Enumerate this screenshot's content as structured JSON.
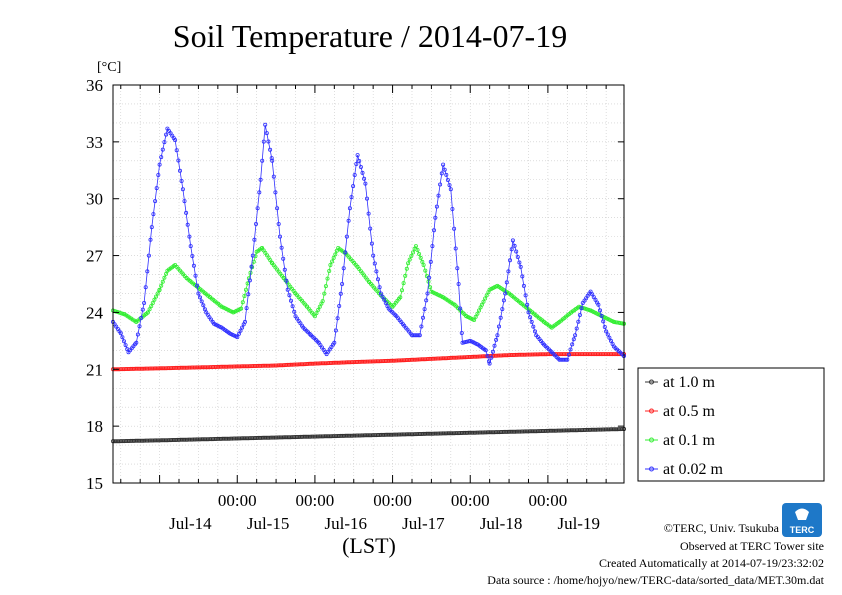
{
  "chart_data": {
    "type": "line",
    "title": "Soil Temperature / 2014-07-19",
    "ylabel": "[°C]",
    "xlabel": "(LST)",
    "ylim": [
      15,
      36
    ],
    "yticks": [
      "15",
      "18",
      "21",
      "24",
      "27",
      "30",
      "33",
      "36"
    ],
    "yticks_values": [
      15,
      18,
      21,
      24,
      27,
      30,
      33,
      36
    ],
    "xlim_days": [
      13.4,
      19.98
    ],
    "x_major_ticks": [
      "00:00",
      "00:00",
      "00:00",
      "00:00",
      "00:00"
    ],
    "x_major_tick_days": [
      15,
      16,
      17,
      18,
      19
    ],
    "x_day_labels": [
      "Jul-14",
      "Jul-15",
      "Jul-16",
      "Jul-17",
      "Jul-18",
      "Jul-19"
    ],
    "x_day_label_days": [
      14.5,
      15.5,
      16.5,
      17.5,
      18.5,
      19.5
    ],
    "grid": true,
    "legend_position": "right",
    "series": [
      {
        "name": "at 1.0 m",
        "color": "#333333",
        "points": [
          [
            13.4,
            17.2
          ],
          [
            14.0,
            17.25
          ],
          [
            14.5,
            17.3
          ],
          [
            15.0,
            17.35
          ],
          [
            15.5,
            17.4
          ],
          [
            16.0,
            17.45
          ],
          [
            16.5,
            17.5
          ],
          [
            17.0,
            17.55
          ],
          [
            17.5,
            17.6
          ],
          [
            18.0,
            17.65
          ],
          [
            18.5,
            17.7
          ],
          [
            19.0,
            17.75
          ],
          [
            19.5,
            17.8
          ],
          [
            19.98,
            17.85
          ]
        ]
      },
      {
        "name": "at 0.5 m",
        "color": "#ff2020",
        "points": [
          [
            13.4,
            21.0
          ],
          [
            14.0,
            21.05
          ],
          [
            14.5,
            21.1
          ],
          [
            15.0,
            21.15
          ],
          [
            15.5,
            21.2
          ],
          [
            16.0,
            21.3
          ],
          [
            16.5,
            21.38
          ],
          [
            17.0,
            21.45
          ],
          [
            17.5,
            21.55
          ],
          [
            18.0,
            21.65
          ],
          [
            18.5,
            21.75
          ],
          [
            19.0,
            21.8
          ],
          [
            19.5,
            21.8
          ],
          [
            19.98,
            21.8
          ]
        ]
      },
      {
        "name": "at 0.1 m",
        "color": "#33ee33",
        "points": [
          [
            13.4,
            24.1
          ],
          [
            13.55,
            23.9
          ],
          [
            13.7,
            23.5
          ],
          [
            13.85,
            24.0
          ],
          [
            14.0,
            25.2
          ],
          [
            14.1,
            26.2
          ],
          [
            14.2,
            26.5
          ],
          [
            14.35,
            25.8
          ],
          [
            14.5,
            25.3
          ],
          [
            14.65,
            24.8
          ],
          [
            14.8,
            24.3
          ],
          [
            14.95,
            24.0
          ],
          [
            15.05,
            24.2
          ],
          [
            15.15,
            25.8
          ],
          [
            15.25,
            27.2
          ],
          [
            15.32,
            27.4
          ],
          [
            15.45,
            26.6
          ],
          [
            15.6,
            25.8
          ],
          [
            15.75,
            25.0
          ],
          [
            15.9,
            24.3
          ],
          [
            16.0,
            23.8
          ],
          [
            16.1,
            24.6
          ],
          [
            16.2,
            26.5
          ],
          [
            16.3,
            27.4
          ],
          [
            16.4,
            27.1
          ],
          [
            16.55,
            26.4
          ],
          [
            16.7,
            25.6
          ],
          [
            16.85,
            24.9
          ],
          [
            17.0,
            24.3
          ],
          [
            17.1,
            24.8
          ],
          [
            17.2,
            26.6
          ],
          [
            17.3,
            27.5
          ],
          [
            17.4,
            26.5
          ],
          [
            17.5,
            25.1
          ],
          [
            17.65,
            24.8
          ],
          [
            17.8,
            24.4
          ],
          [
            17.95,
            23.8
          ],
          [
            18.05,
            23.6
          ],
          [
            18.15,
            24.4
          ],
          [
            18.25,
            25.2
          ],
          [
            18.35,
            25.4
          ],
          [
            18.5,
            25.0
          ],
          [
            18.65,
            24.5
          ],
          [
            18.8,
            24.0
          ],
          [
            18.95,
            23.5
          ],
          [
            19.05,
            23.2
          ],
          [
            19.15,
            23.5
          ],
          [
            19.3,
            24.0
          ],
          [
            19.4,
            24.3
          ],
          [
            19.55,
            24.1
          ],
          [
            19.7,
            23.8
          ],
          [
            19.85,
            23.5
          ],
          [
            19.98,
            23.4
          ]
        ]
      },
      {
        "name": "at 0.02 m",
        "color": "#3030ff",
        "points": [
          [
            13.4,
            23.5
          ],
          [
            13.5,
            22.9
          ],
          [
            13.6,
            21.9
          ],
          [
            13.7,
            22.4
          ],
          [
            13.8,
            24.5
          ],
          [
            13.9,
            28.5
          ],
          [
            14.0,
            31.8
          ],
          [
            14.1,
            33.7
          ],
          [
            14.2,
            33.1
          ],
          [
            14.3,
            30.5
          ],
          [
            14.4,
            27.5
          ],
          [
            14.5,
            25.0
          ],
          [
            14.6,
            24.0
          ],
          [
            14.7,
            23.4
          ],
          [
            14.8,
            23.2
          ],
          [
            14.9,
            22.9
          ],
          [
            15.0,
            22.7
          ],
          [
            15.1,
            23.5
          ],
          [
            15.2,
            27.0
          ],
          [
            15.3,
            31.0
          ],
          [
            15.36,
            33.9
          ],
          [
            15.45,
            32.0
          ],
          [
            15.55,
            28.0
          ],
          [
            15.65,
            25.2
          ],
          [
            15.75,
            23.8
          ],
          [
            15.85,
            23.2
          ],
          [
            15.95,
            22.8
          ],
          [
            16.05,
            22.4
          ],
          [
            16.15,
            21.8
          ],
          [
            16.25,
            22.4
          ],
          [
            16.35,
            25.5
          ],
          [
            16.45,
            29.5
          ],
          [
            16.55,
            32.3
          ],
          [
            16.65,
            30.8
          ],
          [
            16.75,
            27.0
          ],
          [
            16.85,
            25.0
          ],
          [
            16.95,
            24.2
          ],
          [
            17.05,
            23.8
          ],
          [
            17.15,
            23.3
          ],
          [
            17.25,
            22.8
          ],
          [
            17.35,
            22.8
          ],
          [
            17.45,
            25.0
          ],
          [
            17.55,
            29.0
          ],
          [
            17.65,
            31.8
          ],
          [
            17.75,
            30.5
          ],
          [
            17.85,
            25.5
          ],
          [
            17.9,
            22.4
          ],
          [
            18.0,
            22.5
          ],
          [
            18.1,
            22.3
          ],
          [
            18.2,
            22.0
          ],
          [
            18.25,
            21.3
          ],
          [
            18.35,
            22.8
          ],
          [
            18.45,
            25.0
          ],
          [
            18.55,
            27.8
          ],
          [
            18.65,
            26.4
          ],
          [
            18.75,
            24.0
          ],
          [
            18.85,
            22.8
          ],
          [
            18.95,
            22.3
          ],
          [
            19.05,
            21.9
          ],
          [
            19.15,
            21.5
          ],
          [
            19.25,
            21.5
          ],
          [
            19.35,
            22.8
          ],
          [
            19.45,
            24.5
          ],
          [
            19.55,
            25.1
          ],
          [
            19.65,
            24.4
          ],
          [
            19.75,
            23.0
          ],
          [
            19.85,
            22.2
          ],
          [
            19.98,
            21.7
          ]
        ]
      }
    ]
  },
  "footer": {
    "copyright": "©TERC, Univ. Tsukuba",
    "site": "Observed at TERC Tower site",
    "created": "Created Automatically at 2014-07-19/23:32:02",
    "source": "Data source : /home/hojyo/new/TERC-data/sorted_data/MET.30m.dat"
  },
  "logo": {
    "text": "TERC",
    "color": "#1e78c8"
  }
}
